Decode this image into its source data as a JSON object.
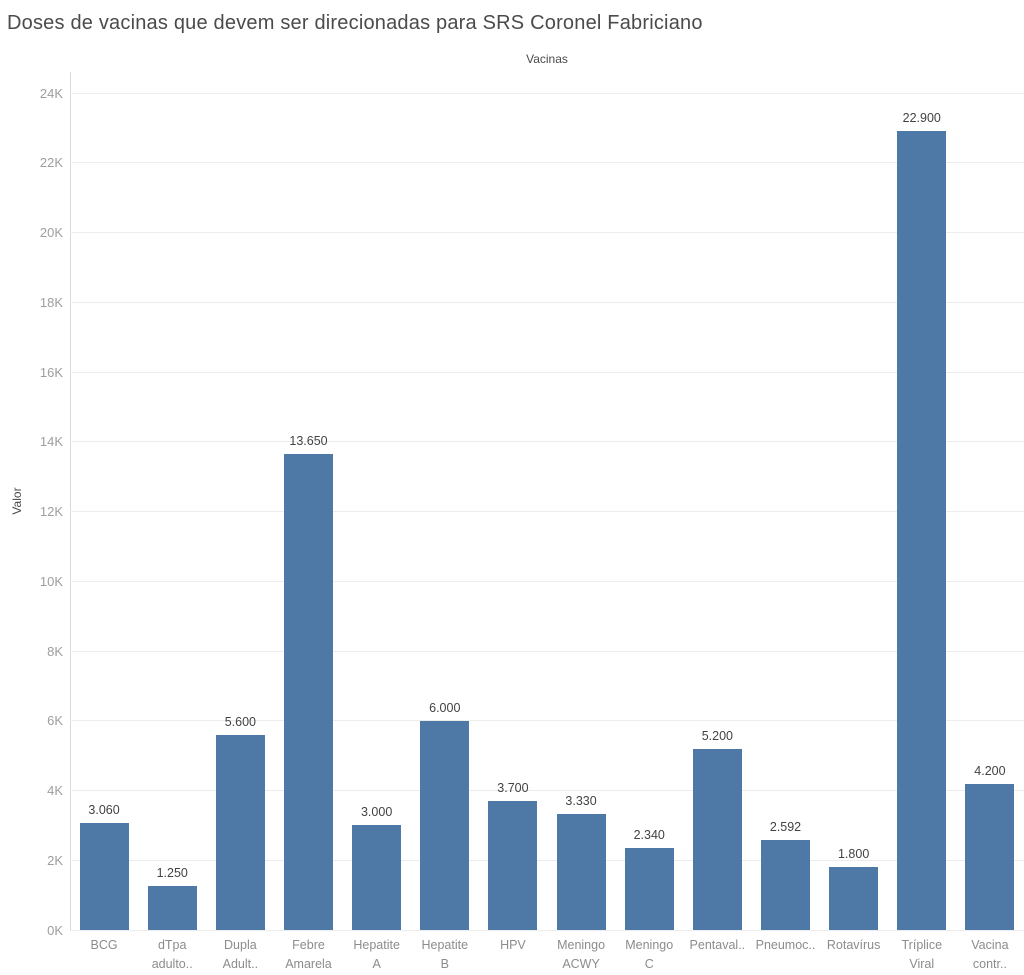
{
  "title": "Doses de vacinas que devem ser direcionadas para SRS Coronel Fabriciano",
  "chart_data": {
    "type": "bar",
    "title": "Doses de vacinas que devem ser direcionadas para SRS Coronel Fabriciano",
    "xlabel": "Vacinas",
    "ylabel": "Valor",
    "categories": [
      [
        "BCG"
      ],
      [
        "dTpa",
        "adulto.."
      ],
      [
        "Dupla",
        "Adult.."
      ],
      [
        "Febre",
        "Amarela"
      ],
      [
        "Hepatite",
        "A"
      ],
      [
        "Hepatite",
        "B"
      ],
      [
        "HPV"
      ],
      [
        "Meningo",
        "ACWY"
      ],
      [
        "Meningo",
        "C"
      ],
      [
        "Pentaval.."
      ],
      [
        "Pneumoc.."
      ],
      [
        "Rotavírus"
      ],
      [
        "Tríplice",
        "Viral"
      ],
      [
        "Vacina",
        "contr.."
      ]
    ],
    "values": [
      3060,
      1250,
      5600,
      13650,
      3000,
      6000,
      3700,
      3330,
      2340,
      5200,
      2592,
      1800,
      22900,
      4200
    ],
    "value_labels": [
      "3.060",
      "1.250",
      "5.600",
      "13.650",
      "3.000",
      "6.000",
      "3.700",
      "3.330",
      "2.340",
      "5.200",
      "2.592",
      "1.800",
      "22.900",
      "4.200"
    ],
    "y_ticks": {
      "values": [
        0,
        2000,
        4000,
        6000,
        8000,
        10000,
        12000,
        14000,
        16000,
        18000,
        20000,
        22000,
        24000
      ],
      "labels": [
        "0K",
        "2K",
        "4K",
        "6K",
        "8K",
        "10K",
        "12K",
        "14K",
        "16K",
        "18K",
        "20K",
        "22K",
        "24K"
      ]
    },
    "ylim": [
      0,
      24000
    ],
    "grid": true,
    "legend": false,
    "bar_color": "#4e79a7"
  }
}
